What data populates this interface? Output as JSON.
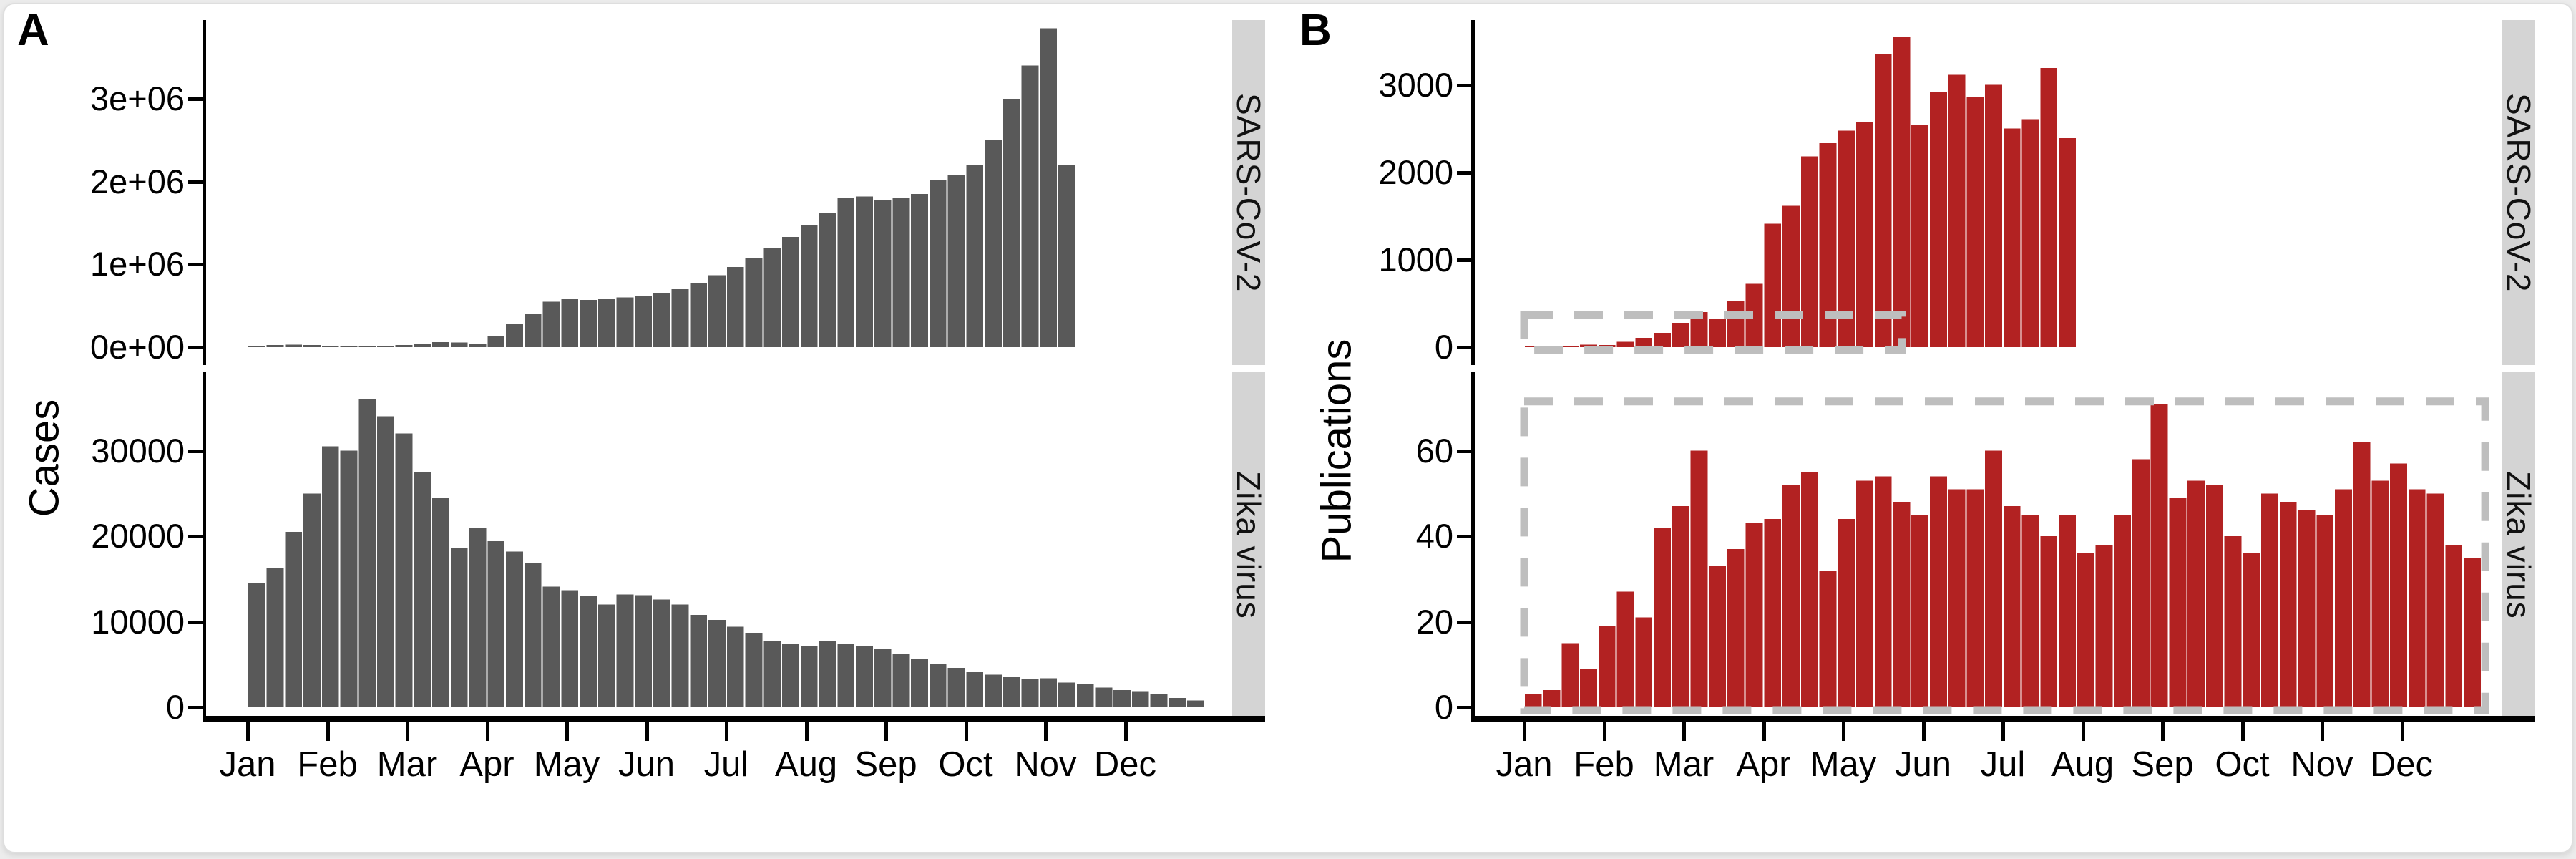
{
  "figure": {
    "description": "Two-panel faceted weekly bar figure comparing epidemic cases (A) with scientific publications (B) for SARS-CoV-2 and Zika virus, by week from Jan to Dec.",
    "panels": [
      {
        "label": "A",
        "y_axis_title": "Cases",
        "facet_labels": [
          "SARS-CoV-2",
          "Zika virus"
        ]
      },
      {
        "label": "B",
        "y_axis_title": "Publications",
        "facet_labels": [
          "SARS-CoV-2",
          "Zika virus"
        ]
      }
    ],
    "x_axis_months": [
      "Jan",
      "Feb",
      "Mar",
      "Apr",
      "May",
      "Jun",
      "Jul",
      "Aug",
      "Sep",
      "Oct",
      "Nov",
      "Dec"
    ]
  },
  "colors": {
    "cases_bar": "#595959",
    "publications_bar": "#B22222",
    "strip_background": "#D4D4D4",
    "dashed_box": "#BEBEBE",
    "axis_line": "#000000",
    "canvas_background": "#FFFFFF",
    "page_background": "#ECECEC"
  },
  "chart_data": [
    {
      "id": "panel-a-sars-cov-2-cases",
      "panel": "A",
      "facet_label": "SARS-CoV-2",
      "type": "bar",
      "x_unit": "week of year (weekly bars starting at Jan tick)",
      "first_week": 1,
      "color_key": "cases_bar",
      "ylabel": "Cases",
      "y_tick_labels": [
        "0e+00",
        "1e+06",
        "2e+06",
        "3e+06"
      ],
      "y_tick_values": [
        0,
        1000000,
        2000000,
        3000000
      ],
      "ylim": [
        0,
        3950000
      ],
      "values": [
        8000,
        26000,
        32000,
        24000,
        12000,
        10000,
        12000,
        15000,
        25000,
        45000,
        60000,
        55000,
        45000,
        130000,
        280000,
        400000,
        550000,
        580000,
        570000,
        580000,
        600000,
        620000,
        650000,
        700000,
        780000,
        870000,
        970000,
        1080000,
        1200000,
        1330000,
        1470000,
        1620000,
        1800000,
        1820000,
        1780000,
        1800000,
        1850000,
        2020000,
        2080000,
        2200000,
        2500000,
        3000000,
        3400000,
        3850000,
        2200000
      ]
    },
    {
      "id": "panel-a-zika-virus-cases",
      "panel": "A",
      "facet_label": "Zika virus",
      "type": "bar",
      "x_unit": "week of year (weekly bars, full year Jan-Dec)",
      "first_week": 1,
      "color_key": "cases_bar",
      "ylabel": "Cases",
      "y_tick_labels": [
        "0",
        "10000",
        "20000",
        "30000"
      ],
      "y_tick_values": [
        0,
        10000,
        20000,
        30000
      ],
      "ylim": [
        0,
        37000
      ],
      "values": [
        14500,
        16300,
        20500,
        25000,
        30500,
        30000,
        36000,
        34000,
        32000,
        27500,
        24500,
        18600,
        21000,
        19400,
        18200,
        16800,
        14100,
        13700,
        13000,
        12000,
        13200,
        13100,
        12600,
        12000,
        10800,
        10200,
        9400,
        8700,
        7800,
        7400,
        7200,
        7700,
        7400,
        7100,
        6800,
        6200,
        5600,
        5100,
        4600,
        4100,
        3800,
        3500,
        3300,
        3400,
        2900,
        2700,
        2300,
        2000,
        1800,
        1500,
        1100,
        800
      ]
    },
    {
      "id": "panel-b-sars-cov-2-publications",
      "panel": "B",
      "facet_label": "SARS-CoV-2",
      "type": "bar",
      "x_unit": "week of year (weekly bars, Jan through mid-Aug)",
      "first_week": 1,
      "color_key": "publications_bar",
      "ylabel": "Publications",
      "y_tick_labels": [
        "0",
        "1000",
        "2000",
        "3000"
      ],
      "y_tick_values": [
        0,
        1000,
        2000,
        3000
      ],
      "ylim": [
        0,
        3700
      ],
      "values": [
        5,
        8,
        15,
        30,
        25,
        60,
        105,
        165,
        280,
        400,
        325,
        530,
        725,
        1415,
        1620,
        2185,
        2335,
        2480,
        2575,
        3360,
        3550,
        2540,
        2920,
        3120,
        2870,
        3005,
        2505,
        2610,
        3195,
        2395
      ],
      "highlight_box": {
        "week_from": 0,
        "week_to": 20.5,
        "value_from": 0,
        "value_to": 370
      }
    },
    {
      "id": "panel-b-zika-virus-publications",
      "panel": "B",
      "facet_label": "Zika virus",
      "type": "bar",
      "x_unit": "week of year (weekly bars, full year Jan-Dec)",
      "first_week": 1,
      "color_key": "publications_bar",
      "ylabel": "Publications",
      "y_tick_labels": [
        "0",
        "20",
        "40",
        "60"
      ],
      "y_tick_values": [
        0,
        20,
        40,
        60
      ],
      "ylim": [
        0,
        74
      ],
      "values": [
        3,
        4,
        15,
        9,
        19,
        27,
        21,
        42,
        47,
        60,
        33,
        37,
        43,
        44,
        52,
        55,
        32,
        44,
        53,
        54,
        48,
        45,
        54,
        51,
        51,
        60,
        47,
        45,
        40,
        45,
        36,
        38,
        45,
        58,
        71,
        49,
        53,
        52,
        40,
        36,
        50,
        48,
        46,
        45,
        51,
        62,
        53,
        57,
        51,
        50,
        38,
        35
      ],
      "highlight_box": {
        "week_from": 0,
        "week_to": 52.2,
        "value_from": 0,
        "value_to": 71.5
      }
    }
  ]
}
